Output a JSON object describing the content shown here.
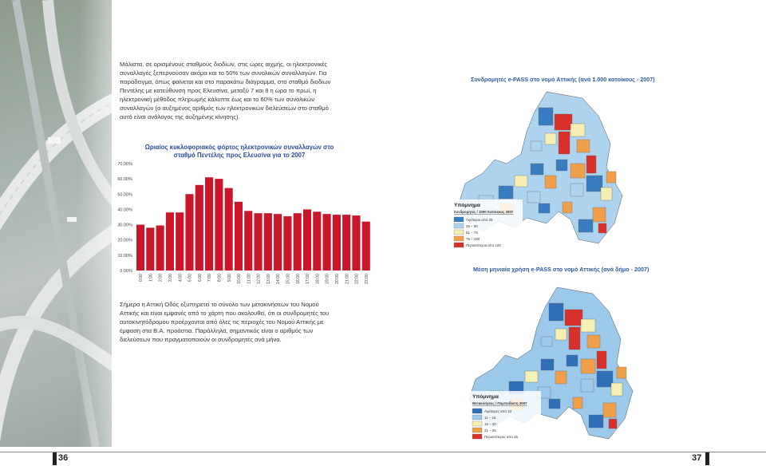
{
  "page": {
    "left_number": "36",
    "right_number": "37",
    "paragraph_top": "Μάλιστα, σε ορισμένους σταθμούς διοδίων, στις ώρες αιχμής, οι ηλεκτρονικές συναλλαγές ξεπερνούσαν ακόμα και το 50% των συνολικών συναλλαγών. Για παράδειγμα, όπως φαίνεται και στο παρακάτω διάγραμμα, στο σταθμό διοδίων Πεντέλης με κατεύθυνση προς Ελευσίνα, μεταξύ 7 και 8 η ώρα το πρωί, η ηλεκτρονική μέθοδος πληρωμής κάλυπτε έως και το 60% των συνολικών συναλλαγών (ο αυξημένος αριθμός των ηλεκτρονικών διελεύσεων στο σταθμό αυτό είναι ανάλογος της αυξημένης κίνησης).",
    "paragraph_bottom": "Σήμερα η Αττική Οδός εξυπηρετεί το σύνολο των μετακινήσεων του Νομού Αττικής και είναι εμφανές από το χάρτη που ακολουθεί, ότι οι συνδρομητές του αυτοκινητόδρομου προέρχονται από όλες τις περιοχές του Νομού Αττικής με έμφαση στα Β.Α. προάστια. Παράλληλα, σημαντικός είναι ο αριθμός των διελεύσεων που πραγματοποιούν οι συνδρομητές ανά μήνα."
  },
  "map_top": {
    "title": "Συνδρομητές e-PASS στο νομό Αττικής (ανά 1.000 κατοίκους - 2007)",
    "legend_heading": "Υπόμνημα",
    "legend_subheading": "Συνδρομητές / 1000 Κατοίκους 2007",
    "legend": [
      {
        "label": "Λιγότεροι από 25",
        "color": "#3a7cc0"
      },
      {
        "label": "26 – 50",
        "color": "#aed3ee"
      },
      {
        "label": "51 – 75",
        "color": "#f5efb4"
      },
      {
        "label": "76 – 100",
        "color": "#f0a04a"
      },
      {
        "label": "Περισσότεροι από 100",
        "color": "#d8312c"
      }
    ]
  },
  "map_bottom": {
    "title": "Μέση μηνιαία χρήση e-PASS στο νομό Αττικής (ανά δήμο - 2007)",
    "legend_heading": "Υπόμνημα",
    "legend_subheading": "Μετακινήσεις / Πομποδέκτη 2007",
    "legend": [
      {
        "label": "Λιγότερες από 10",
        "color": "#2f6fb8"
      },
      {
        "label": "11 – 15",
        "color": "#9cc8ea"
      },
      {
        "label": "16 – 20",
        "color": "#f5efb4"
      },
      {
        "label": "21 – 25",
        "color": "#f0a04a"
      },
      {
        "label": "Περισσότερες από 25",
        "color": "#d8312c"
      }
    ]
  },
  "chart_data": {
    "type": "bar",
    "title": "Ωριαίος κυκλοφοριακός φόρτος ηλεκτρονικών συναλλαγών στο σταθμό Πεντέλης προς Ελευσίνα για το 2007",
    "categories": [
      "0:00",
      "1:00",
      "2:00",
      "3:00",
      "4:00",
      "5:00",
      "6:00",
      "7:00",
      "8:00",
      "9:00",
      "10:00",
      "11:00",
      "12:00",
      "13:00",
      "14:00",
      "15:00",
      "16:00",
      "17:00",
      "18:00",
      "19:00",
      "20:00",
      "21:00",
      "22:00",
      "23:00"
    ],
    "values": [
      30.0,
      28.0,
      29.5,
      38.0,
      38.0,
      50.0,
      56.0,
      61.0,
      60.0,
      54.0,
      45.0,
      39.0,
      37.5,
      37.5,
      37.0,
      35.5,
      37.5,
      40.0,
      38.5,
      37.0,
      36.5,
      36.5,
      36.0,
      32.0
    ],
    "yticks": [
      "0.00%",
      "10.00%",
      "20.00%",
      "30.00%",
      "40.00%",
      "50.00%",
      "60.00%",
      "70.00%"
    ],
    "ylim": [
      0,
      70
    ],
    "bar_color": "#c9162b"
  }
}
